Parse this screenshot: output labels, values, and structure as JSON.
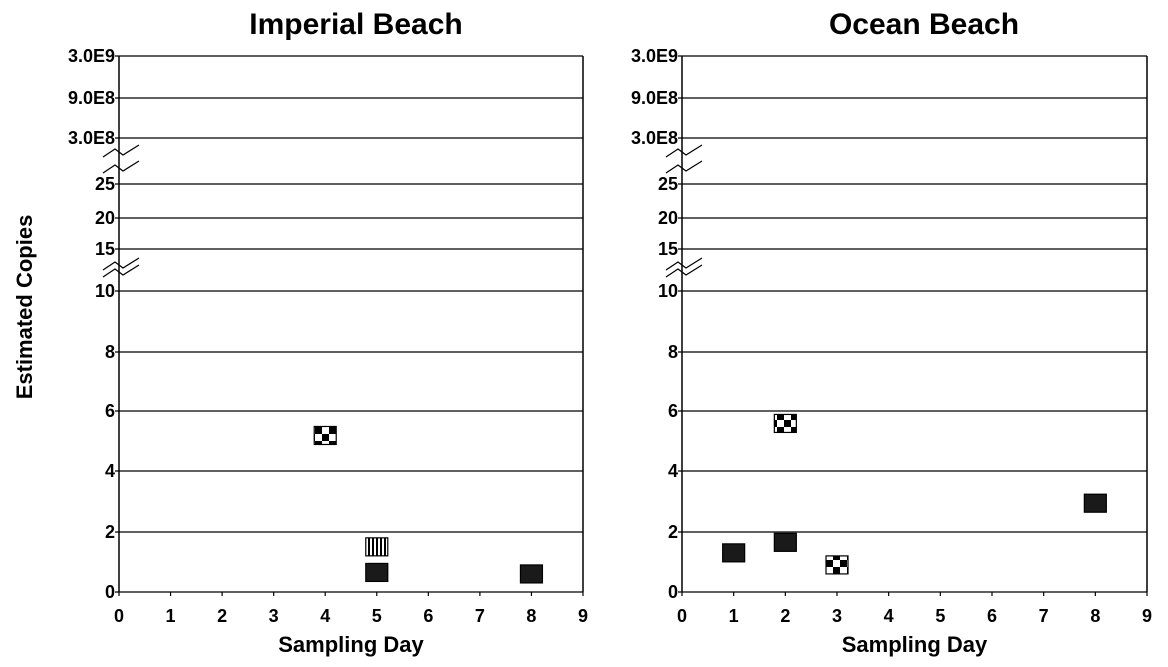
{
  "ylabel": "Estimated Copies",
  "chart_data": [
    {
      "type": "scatter",
      "title": "Imperial Beach",
      "xlabel": "Sampling Day",
      "ylabel": "Estimated Copies",
      "x_ticks": [
        "0",
        "1",
        "2",
        "3",
        "4",
        "5",
        "6",
        "7",
        "8",
        "9"
      ],
      "y_ticks": [
        "0",
        "2",
        "4",
        "6",
        "8",
        "10",
        "15",
        "20",
        "25",
        "3.0E8",
        "9.0E8",
        "3.0E9"
      ],
      "xlim": [
        0,
        9
      ],
      "broken_y_axis": true,
      "grid": "horizontal",
      "points": [
        {
          "x": 4,
          "y": 5.2,
          "marker": "checkered"
        },
        {
          "x": 5,
          "y": 1.5,
          "marker": "striped"
        },
        {
          "x": 5,
          "y": 0.65,
          "marker": "solid"
        },
        {
          "x": 8,
          "y": 0.6,
          "marker": "solid"
        }
      ]
    },
    {
      "type": "scatter",
      "title": "Ocean Beach",
      "xlabel": "Sampling Day",
      "ylabel": "Estimated Copies",
      "x_ticks": [
        "0",
        "1",
        "2",
        "3",
        "4",
        "5",
        "6",
        "7",
        "8",
        "9"
      ],
      "y_ticks": [
        "0",
        "2",
        "4",
        "6",
        "8",
        "10",
        "15",
        "20",
        "25",
        "3.0E8",
        "9.0E8",
        "3.0E9"
      ],
      "xlim": [
        0,
        9
      ],
      "broken_y_axis": true,
      "grid": "horizontal",
      "points": [
        {
          "x": 1,
          "y": 1.3,
          "marker": "solid"
        },
        {
          "x": 2,
          "y": 1.65,
          "marker": "solid"
        },
        {
          "x": 2,
          "y": 5.6,
          "marker": "checkered"
        },
        {
          "x": 3,
          "y": 0.9,
          "marker": "checkered"
        },
        {
          "x": 8,
          "y": 2.95,
          "marker": "solid"
        }
      ]
    }
  ]
}
